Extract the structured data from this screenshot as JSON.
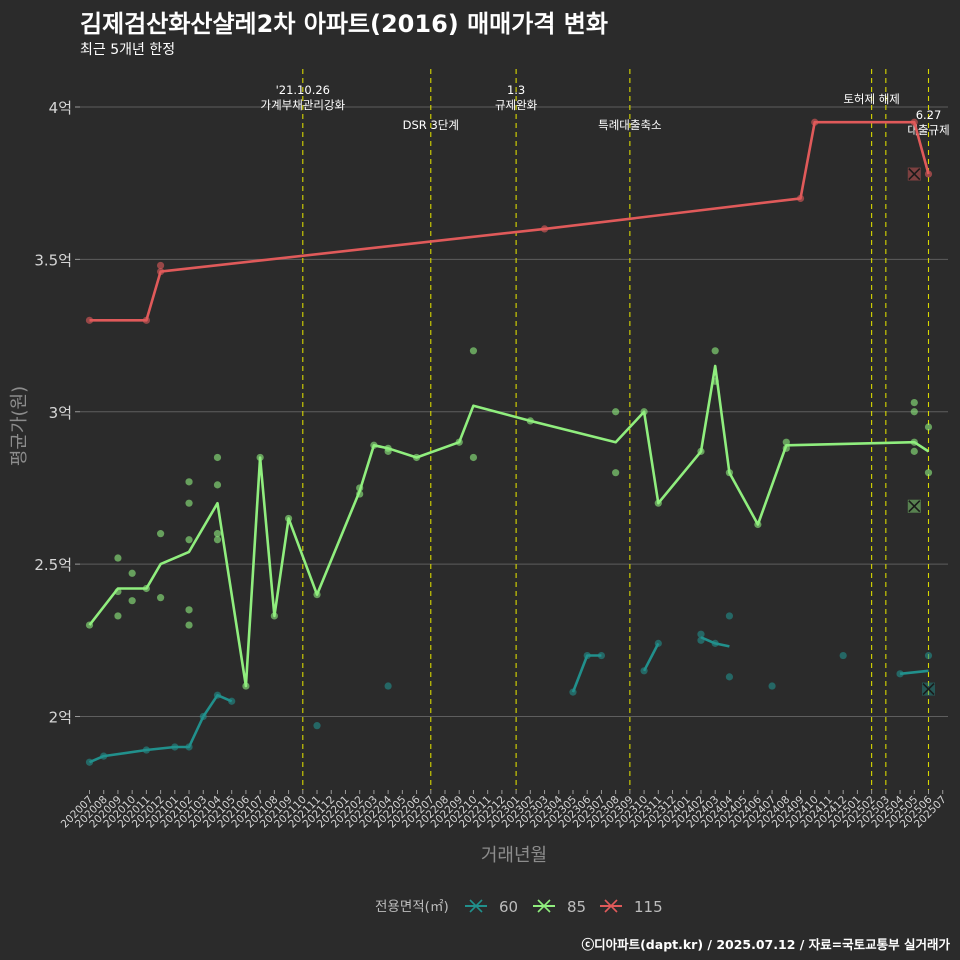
{
  "chart_data": {
    "type": "line",
    "title": "김제검산화산샬레2차 아파트(2016) 매매가격 변화",
    "subtitle": "최근 5개년 한정",
    "xlabel": "거래년월",
    "ylabel": "평균가(원)",
    "ylim_eok": [
      1.75,
      4.12
    ],
    "y_ticks": [
      {
        "value": 2.0,
        "label": "2억"
      },
      {
        "value": 2.5,
        "label": "2.5억"
      },
      {
        "value": 3.0,
        "label": "3억"
      },
      {
        "value": 3.5,
        "label": "3.5억"
      },
      {
        "value": 4.0,
        "label": "4억"
      }
    ],
    "x_start": "2020-07",
    "x_end": "2025-07",
    "x_ticks": [
      "202007",
      "202008",
      "202009",
      "202010",
      "202011",
      "202012",
      "202101",
      "202102",
      "202103",
      "202104",
      "202105",
      "202106",
      "202107",
      "202108",
      "202109",
      "202110",
      "202111",
      "202112",
      "202201",
      "202202",
      "202203",
      "202204",
      "202205",
      "202206",
      "202207",
      "202208",
      "202209",
      "202210",
      "202211",
      "202212",
      "202301",
      "202302",
      "202303",
      "202304",
      "202305",
      "202306",
      "202307",
      "202308",
      "202309",
      "202310",
      "202311",
      "202312",
      "202401",
      "202402",
      "202403",
      "202404",
      "202405",
      "202406",
      "202407",
      "202408",
      "202409",
      "202410",
      "202411",
      "202412",
      "202501",
      "202502",
      "202503",
      "202504",
      "202505",
      "202506",
      "202507"
    ],
    "legend_title": "전용면적(㎡)",
    "legend_position": "bottom",
    "series": [
      {
        "name": "60",
        "color": "#21908c",
        "line": [
          [
            "2020-07",
            1.85
          ],
          [
            "2020-08",
            1.87
          ],
          [
            "2020-11",
            1.89
          ],
          [
            "2021-01",
            1.9
          ],
          [
            "2021-02",
            1.9
          ],
          [
            "2021-03",
            2.0
          ],
          [
            "2021-04",
            2.07
          ],
          [
            "2021-05",
            2.05
          ],
          null,
          [
            "2023-05",
            2.08
          ],
          [
            "2023-06",
            2.2
          ],
          [
            "2023-07",
            2.2
          ],
          null,
          [
            "2023-10",
            2.15
          ],
          [
            "2023-11",
            2.24
          ],
          null,
          [
            "2024-02",
            2.26
          ],
          [
            "2024-03",
            2.24
          ],
          [
            "2024-04",
            2.23
          ],
          null,
          [
            "2025-04",
            2.14
          ],
          [
            "2025-06",
            2.15
          ]
        ],
        "points": [
          [
            "2020-07",
            1.85
          ],
          [
            "2020-08",
            1.87
          ],
          [
            "2020-11",
            1.89
          ],
          [
            "2021-01",
            1.9
          ],
          [
            "2021-02",
            1.9
          ],
          [
            "2021-03",
            2.0
          ],
          [
            "2021-04",
            2.07
          ],
          [
            "2021-05",
            2.05
          ],
          [
            "2021-11",
            1.97
          ],
          [
            "2022-04",
            2.1
          ],
          [
            "2023-05",
            2.08
          ],
          [
            "2023-06",
            2.2
          ],
          [
            "2023-07",
            2.2
          ],
          [
            "2023-10",
            2.15
          ],
          [
            "2023-11",
            2.24
          ],
          [
            "2024-02",
            2.25
          ],
          [
            "2024-02",
            2.27
          ],
          [
            "2024-03",
            2.24
          ],
          [
            "2024-04",
            2.33
          ],
          [
            "2024-04",
            2.13
          ],
          [
            "2024-07",
            2.1
          ],
          [
            "2024-12",
            2.2
          ],
          [
            "2025-04",
            2.14
          ],
          [
            "2025-06",
            2.2
          ]
        ],
        "latest": [
          "2025-06",
          2.09
        ]
      },
      {
        "name": "85",
        "color": "#90ee7e",
        "line": [
          [
            "2020-07",
            2.3
          ],
          [
            "2020-09",
            2.42
          ],
          [
            "2020-10",
            2.42
          ],
          [
            "2020-11",
            2.42
          ],
          [
            "2020-12",
            2.5
          ],
          [
            "2021-02",
            2.54
          ],
          [
            "2021-04",
            2.7
          ],
          [
            "2021-06",
            2.1
          ],
          [
            "2021-07",
            2.85
          ],
          [
            "2021-08",
            2.33
          ],
          [
            "2021-09",
            2.65
          ],
          [
            "2021-11",
            2.4
          ],
          [
            "2022-02",
            2.74
          ],
          [
            "2022-03",
            2.89
          ],
          [
            "2022-04",
            2.88
          ],
          [
            "2022-06",
            2.85
          ],
          [
            "2022-09",
            2.9
          ],
          [
            "2022-10",
            3.02
          ],
          [
            "2023-02",
            2.97
          ],
          [
            "2023-08",
            2.9
          ],
          [
            "2023-10",
            3.0
          ],
          [
            "2023-11",
            2.7
          ],
          [
            "2024-02",
            2.87
          ],
          [
            "2024-03",
            3.15
          ],
          [
            "2024-04",
            2.8
          ],
          [
            "2024-06",
            2.63
          ],
          [
            "2024-08",
            2.89
          ],
          [
            "2025-05",
            2.9
          ],
          [
            "2025-06",
            2.87
          ]
        ],
        "points": [
          [
            "2020-07",
            2.3
          ],
          [
            "2020-09",
            2.52
          ],
          [
            "2020-09",
            2.41
          ],
          [
            "2020-09",
            2.33
          ],
          [
            "2020-10",
            2.47
          ],
          [
            "2020-10",
            2.38
          ],
          [
            "2020-11",
            2.42
          ],
          [
            "2020-12",
            2.6
          ],
          [
            "2020-12",
            2.39
          ],
          [
            "2021-02",
            2.77
          ],
          [
            "2021-02",
            2.7
          ],
          [
            "2021-02",
            2.58
          ],
          [
            "2021-02",
            2.35
          ],
          [
            "2021-02",
            2.3
          ],
          [
            "2021-04",
            2.85
          ],
          [
            "2021-04",
            2.76
          ],
          [
            "2021-04",
            2.6
          ],
          [
            "2021-04",
            2.58
          ],
          [
            "2021-06",
            2.1
          ],
          [
            "2021-07",
            2.85
          ],
          [
            "2021-08",
            2.33
          ],
          [
            "2021-09",
            2.65
          ],
          [
            "2021-11",
            2.4
          ],
          [
            "2022-02",
            2.75
          ],
          [
            "2022-02",
            2.73
          ],
          [
            "2022-03",
            2.89
          ],
          [
            "2022-04",
            2.88
          ],
          [
            "2022-04",
            2.87
          ],
          [
            "2022-06",
            2.85
          ],
          [
            "2022-09",
            2.9
          ],
          [
            "2022-10",
            3.2
          ],
          [
            "2022-10",
            2.85
          ],
          [
            "2023-02",
            2.97
          ],
          [
            "2023-08",
            3.0
          ],
          [
            "2023-08",
            2.8
          ],
          [
            "2023-10",
            3.0
          ],
          [
            "2023-11",
            2.7
          ],
          [
            "2024-02",
            2.87
          ],
          [
            "2024-03",
            3.2
          ],
          [
            "2024-03",
            3.1
          ],
          [
            "2024-04",
            2.8
          ],
          [
            "2024-06",
            2.63
          ],
          [
            "2024-08",
            2.9
          ],
          [
            "2024-08",
            2.88
          ],
          [
            "2025-05",
            3.03
          ],
          [
            "2025-05",
            3.0
          ],
          [
            "2025-05",
            2.9
          ],
          [
            "2025-05",
            2.87
          ],
          [
            "2025-06",
            2.95
          ],
          [
            "2025-06",
            2.8
          ]
        ],
        "latest": [
          "2025-05",
          2.69
        ]
      },
      {
        "name": "115",
        "color": "#e05a5a",
        "line": [
          [
            "2020-07",
            3.3
          ],
          [
            "2020-11",
            3.3
          ],
          [
            "2020-12",
            3.46
          ],
          [
            "2023-03",
            3.6
          ],
          [
            "2024-09",
            3.7
          ],
          [
            "2024-10",
            3.95
          ],
          [
            "2025-05",
            3.95
          ],
          [
            "2025-06",
            3.78
          ]
        ],
        "points": [
          [
            "2020-07",
            3.3
          ],
          [
            "2020-11",
            3.3
          ],
          [
            "2020-12",
            3.48
          ],
          [
            "2020-12",
            3.46
          ],
          [
            "2023-03",
            3.6
          ],
          [
            "2024-09",
            3.7
          ],
          [
            "2024-10",
            3.95
          ],
          [
            "2025-05",
            3.95
          ],
          [
            "2025-06",
            3.78
          ]
        ],
        "latest": [
          "2025-05",
          3.78
        ]
      }
    ],
    "events": [
      {
        "date": "2021-10",
        "label_lines": [
          "'21.10.26",
          "가계부채관리강화"
        ],
        "row": "top"
      },
      {
        "date": "2022-07",
        "label_lines": [
          "DSR 3단계"
        ],
        "row": "low"
      },
      {
        "date": "2023-01",
        "label_lines": [
          "1.3",
          "규제완화"
        ],
        "row": "top"
      },
      {
        "date": "2023-09",
        "label_lines": [
          "특례대출축소"
        ],
        "row": "low"
      },
      {
        "date": "2025-02",
        "label_lines": [
          "토허제 해제"
        ],
        "row": "mid"
      },
      {
        "date": "2025-03",
        "label_lines": [],
        "row": "mid"
      },
      {
        "date": "2025-06",
        "label_lines": [
          "6.27",
          "대출규제"
        ],
        "row": "right"
      }
    ]
  },
  "footer": "ⓒ디아파트(dapt.kr) / 2025.07.12 / 자료=국토교통부 실거래가"
}
